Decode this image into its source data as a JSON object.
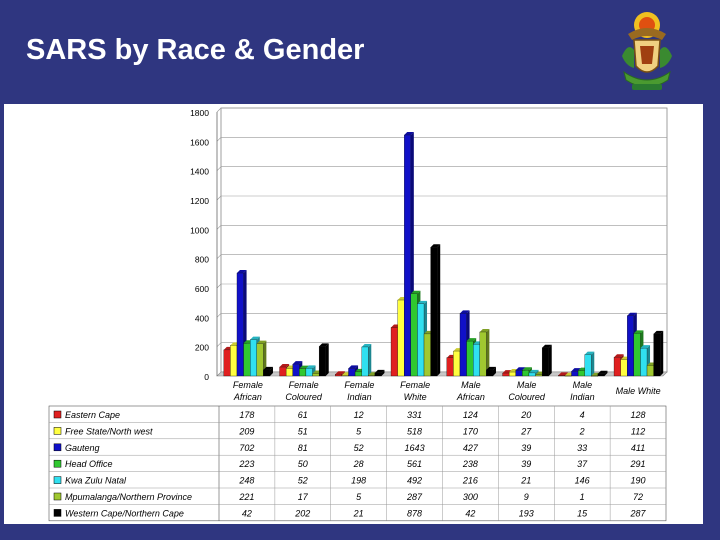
{
  "slide": {
    "title": "SARS by Race & Gender",
    "crest_icon": "coat-of-arms-icon"
  },
  "chart_data": {
    "type": "bar",
    "title": "",
    "xlabel": "",
    "ylabel": "",
    "ylim": [
      0,
      1800
    ],
    "ytick_labels": [
      "0",
      "200",
      "400",
      "600",
      "800",
      "1000",
      "1200",
      "1400",
      "1600",
      "1800"
    ],
    "grid": true,
    "legend": "table-below",
    "categories": [
      [
        "Female",
        "African"
      ],
      [
        "Female",
        "Coloured"
      ],
      [
        "Female",
        "Indian"
      ],
      [
        "Female",
        "White"
      ],
      [
        "Male",
        "African"
      ],
      [
        "Male",
        "Coloured"
      ],
      [
        "Male",
        "Indian"
      ],
      [
        "Male White"
      ]
    ],
    "series": [
      {
        "name": "Eastern Cape",
        "color": "#e02020",
        "values": [
          178,
          61,
          12,
          331,
          124,
          20,
          4,
          128
        ]
      },
      {
        "name": "Free State/North west",
        "color": "#ffff40",
        "values": [
          209,
          51,
          5,
          518,
          170,
          27,
          2,
          112
        ]
      },
      {
        "name": "Gauteng",
        "color": "#1010c8",
        "values": [
          702,
          81,
          52,
          1643,
          427,
          39,
          33,
          411
        ]
      },
      {
        "name": "Head Office",
        "color": "#30c830",
        "values": [
          223,
          50,
          28,
          561,
          238,
          39,
          37,
          291
        ]
      },
      {
        "name": "Kwa Zulu Natal",
        "color": "#30e0f0",
        "values": [
          248,
          52,
          198,
          492,
          216,
          21,
          146,
          190
        ]
      },
      {
        "name": "Mpumalanga/Northern Province",
        "color": "#a0c830",
        "values": [
          221,
          17,
          5,
          287,
          300,
          9,
          1,
          72
        ]
      },
      {
        "name": "Western Cape/Northern Cape",
        "color": "#000000",
        "values": [
          42,
          202,
          21,
          878,
          42,
          193,
          15,
          287
        ]
      }
    ]
  }
}
